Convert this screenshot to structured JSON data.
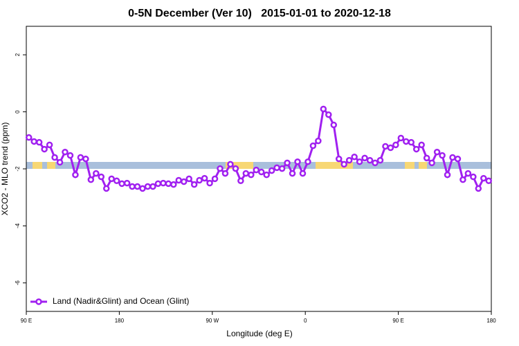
{
  "chart_data": {
    "type": "line",
    "title": "0-5N December (Ver 10)   2015-01-01 to 2020-12-18",
    "xlabel": "Longitude (deg E)",
    "ylabel": "XCO2 - MLO trend (ppm)",
    "x": [
      92.5,
      97.5,
      102.5,
      107.5,
      112.5,
      117.5,
      122.5,
      127.5,
      132.5,
      137.5,
      142.5,
      147.5,
      152.5,
      157.5,
      162.5,
      167.5,
      172.5,
      177.5,
      182.5,
      187.5,
      192.5,
      197.5,
      202.5,
      207.5,
      212.5,
      217.5,
      222.5,
      227.5,
      232.5,
      237.5,
      242.5,
      247.5,
      252.5,
      257.5,
      262.5,
      267.5,
      272.5,
      277.5,
      282.5,
      287.5,
      292.5,
      297.5,
      302.5,
      307.5,
      312.5,
      317.5,
      322.5,
      327.5,
      332.5,
      337.5,
      342.5,
      347.5,
      352.5,
      357.5,
      362.5,
      367.5,
      372.5,
      377.5,
      382.5,
      387.5,
      392.5,
      397.5,
      402.5,
      407.5,
      412.5,
      417.5,
      422.5,
      427.5,
      432.5,
      437.5,
      442.5,
      447.5,
      452.5,
      457.5,
      462.5,
      467.5,
      472.5,
      477.5,
      482.5,
      487.5,
      492.5,
      497.5,
      502.5,
      507.5,
      512.5,
      517.5,
      522.5,
      527.5,
      532.5,
      537.5
    ],
    "series": [
      {
        "name": "Land (Nadir&Glint) and Ocean (Glint)",
        "color": "#a020f0",
        "values": [
          -0.9,
          -1.04,
          -1.07,
          -1.31,
          -1.16,
          -1.6,
          -1.77,
          -1.41,
          -1.53,
          -2.21,
          -1.6,
          -1.65,
          -2.38,
          -2.16,
          -2.28,
          -2.69,
          -2.35,
          -2.42,
          -2.52,
          -2.5,
          -2.62,
          -2.62,
          -2.69,
          -2.62,
          -2.62,
          -2.52,
          -2.5,
          -2.52,
          -2.55,
          -2.4,
          -2.45,
          -2.35,
          -2.55,
          -2.4,
          -2.33,
          -2.5,
          -2.35,
          -1.99,
          -2.16,
          -1.84,
          -1.99,
          -2.42,
          -2.16,
          -2.21,
          -2.04,
          -2.11,
          -2.21,
          -2.06,
          -1.96,
          -1.99,
          -1.79,
          -2.16,
          -1.75,
          -2.16,
          -1.75,
          -1.19,
          -1.02,
          0.1,
          -0.1,
          -0.46,
          -1.65,
          -1.84,
          -1.7,
          -1.58,
          -1.75,
          -1.62,
          -1.7,
          -1.79,
          -1.7,
          -1.21,
          -1.26,
          -1.16,
          -0.92,
          -1.04,
          -1.07,
          -1.31,
          -1.16,
          -1.62,
          -1.79,
          -1.41,
          -1.53,
          -2.21,
          -1.6,
          -1.65,
          -2.38,
          -2.16,
          -2.28,
          -2.69,
          -2.33,
          -2.42
        ]
      }
    ],
    "xlim": [
      90,
      540
    ],
    "xticks": [
      {
        "value": 90,
        "label": "90 E"
      },
      180,
      {
        "value": 270,
        "label": "90 W"
      },
      {
        "value": 360,
        "label": "0"
      },
      {
        "value": 450,
        "label": "90 E"
      },
      {
        "value": 540,
        "label": "180"
      }
    ],
    "ylim": [
      -7,
      3
    ],
    "yticks": [
      -6,
      -4,
      -2,
      0,
      2
    ],
    "legend": "bottom-left"
  }
}
